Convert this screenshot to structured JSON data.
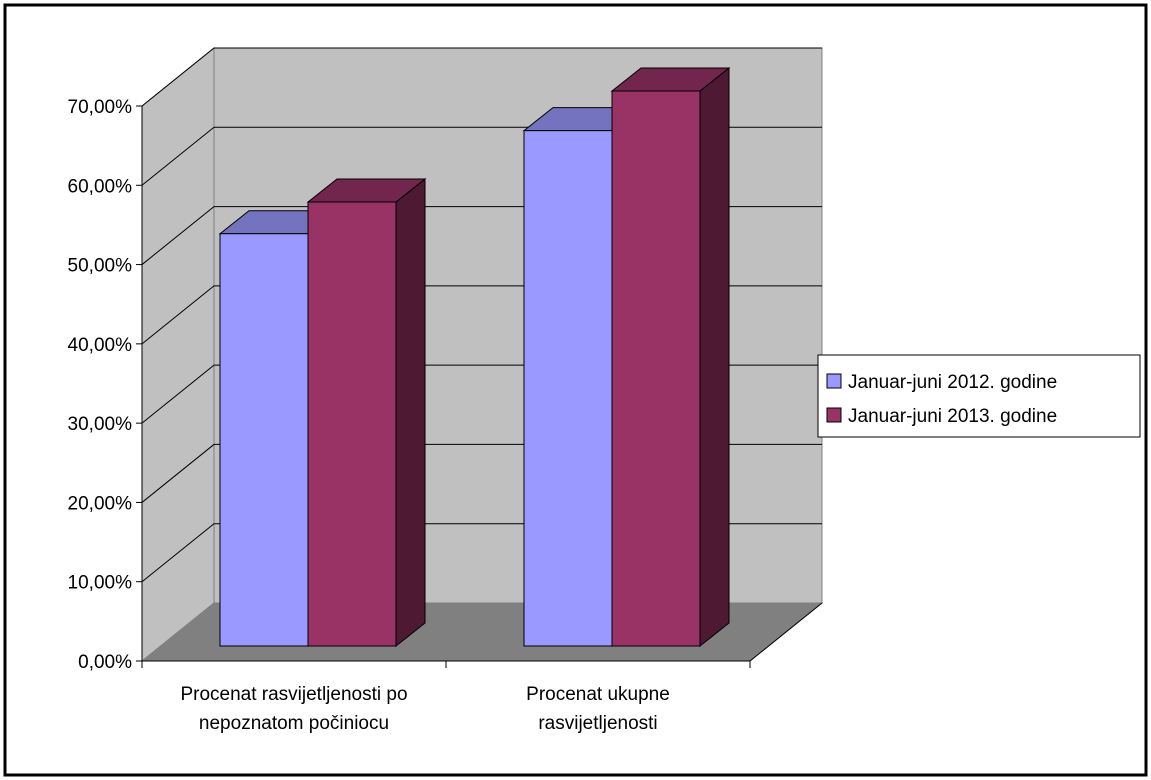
{
  "chart_data": {
    "type": "bar",
    "title": "",
    "xlabel": "",
    "ylabel": "",
    "categories": [
      [
        "Procenat rasvijetljenosti po",
        "nepoznatom počiniocu"
      ],
      [
        "Procenat ukupne",
        "rasvijetljenosti"
      ]
    ],
    "series": [
      {
        "name": "Januar-juni 2012. godine",
        "values": [
          0.52,
          0.65
        ]
      },
      {
        "name": "Januar-juni 2013. godine",
        "values": [
          0.56,
          0.7
        ]
      }
    ],
    "ylim": [
      0,
      0.7
    ],
    "yticks": [
      "0,00%",
      "10,00%",
      "20,00%",
      "30,00%",
      "40,00%",
      "50,00%",
      "60,00%",
      "70,00%"
    ],
    "grid": true,
    "three_d": true,
    "legend_position": "right",
    "colors": {
      "series_front": [
        "#9999ff",
        "#993366"
      ],
      "series_top": [
        "#7373bf",
        "#73264d"
      ],
      "series_side": [
        "#4d4d80",
        "#4d1933"
      ],
      "back_wall": "#c0c0c0",
      "side_wall": "#c0c0c0",
      "floor": "#808080",
      "border": "#000000"
    }
  }
}
